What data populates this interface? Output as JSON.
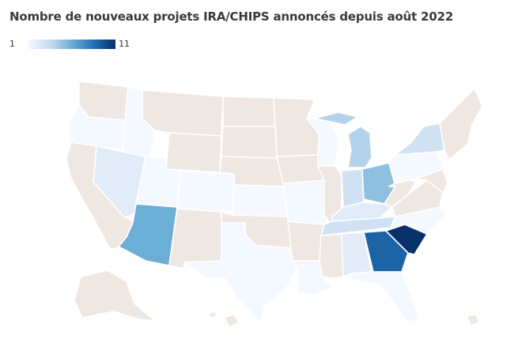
{
  "title": "Nombre de nouveaux projets IRA/CHIPS annoncés depuis août 2022",
  "legend": {
    "min": "1",
    "max": "11",
    "colors": [
      "#f4f8ff",
      "#08306b"
    ]
  },
  "no_data_color": "#efe7e2",
  "states": [
    {
      "code": "WA",
      "value": null
    },
    {
      "code": "OR",
      "value": 1
    },
    {
      "code": "CA",
      "value": null
    },
    {
      "code": "ID",
      "value": 1
    },
    {
      "code": "NV",
      "value": 2
    },
    {
      "code": "MT",
      "value": null
    },
    {
      "code": "WY",
      "value": null
    },
    {
      "code": "UT",
      "value": 1
    },
    {
      "code": "AZ",
      "value": 6
    },
    {
      "code": "CO",
      "value": 1
    },
    {
      "code": "NM",
      "value": null
    },
    {
      "code": "ND",
      "value": null
    },
    {
      "code": "SD",
      "value": null
    },
    {
      "code": "NE",
      "value": null
    },
    {
      "code": "KS",
      "value": 1
    },
    {
      "code": "OK",
      "value": null
    },
    {
      "code": "TX",
      "value": 1
    },
    {
      "code": "MN",
      "value": null
    },
    {
      "code": "IA",
      "value": null
    },
    {
      "code": "MO",
      "value": 1
    },
    {
      "code": "AR",
      "value": null
    },
    {
      "code": "LA",
      "value": 1
    },
    {
      "code": "WI",
      "value": 1
    },
    {
      "code": "IL",
      "value": null
    },
    {
      "code": "MI",
      "value": 4
    },
    {
      "code": "IN",
      "value": 3
    },
    {
      "code": "OH",
      "value": 5
    },
    {
      "code": "KY",
      "value": 2
    },
    {
      "code": "TN",
      "value": 3
    },
    {
      "code": "MS",
      "value": null
    },
    {
      "code": "AL",
      "value": 2
    },
    {
      "code": "GA",
      "value": 9
    },
    {
      "code": "FL",
      "value": 1
    },
    {
      "code": "SC",
      "value": 11
    },
    {
      "code": "NC",
      "value": 1
    },
    {
      "code": "VA",
      "value": null
    },
    {
      "code": "WV",
      "value": null
    },
    {
      "code": "PA",
      "value": 1
    },
    {
      "code": "NY",
      "value": 3
    },
    {
      "code": "NE_states",
      "value": null
    },
    {
      "code": "AK",
      "value": null
    },
    {
      "code": "HI",
      "value": null
    }
  ]
}
